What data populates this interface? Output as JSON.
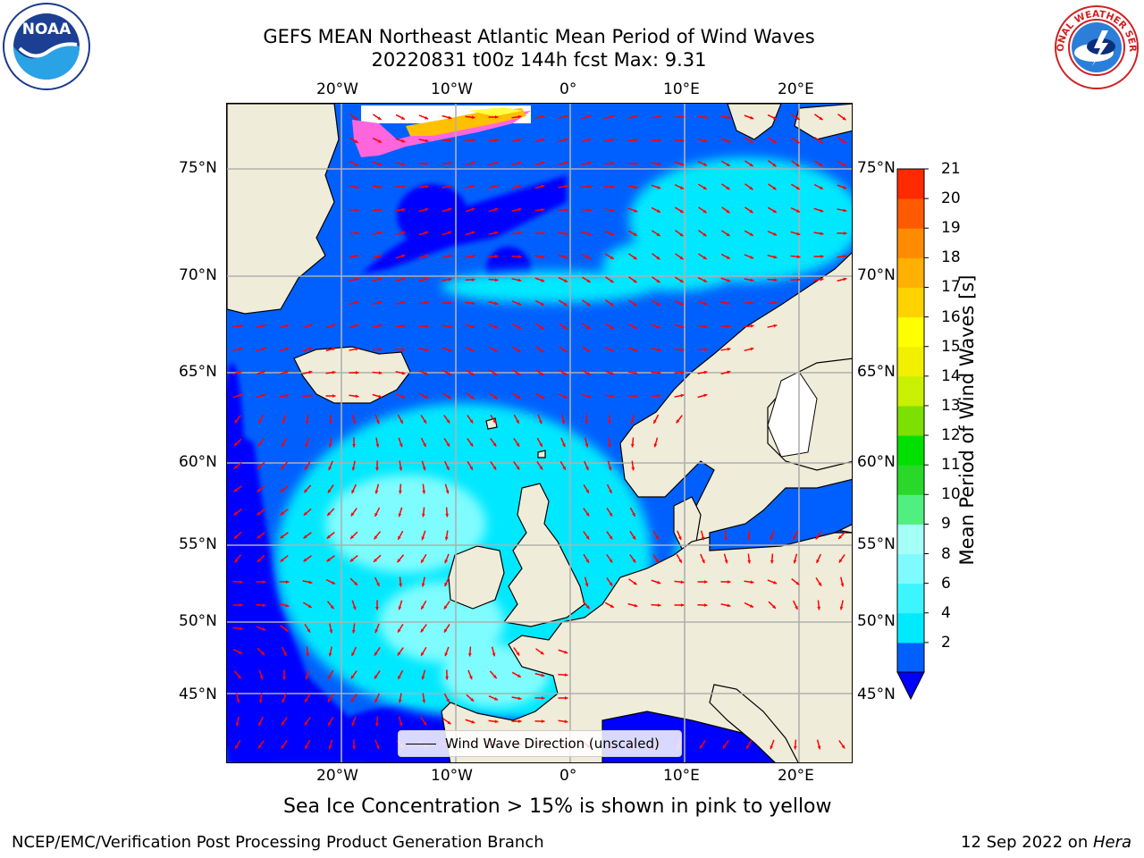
{
  "title_line1": "GEFS MEAN Northeast Atlantic Mean Period of Wind Waves",
  "title_line2": "20220831 t00z 144h fcst   Max: 9.31",
  "top_lon_labels": [
    "20°W",
    "10°W",
    "0°",
    "10°E",
    "20°E"
  ],
  "bottom_lon_labels": [
    "20°W",
    "10°W",
    "0°",
    "10°E",
    "20°E"
  ],
  "left_lat_labels": [
    "75°N",
    "70°N",
    "65°N",
    "60°N",
    "55°N",
    "50°N",
    "45°N"
  ],
  "right_lat_labels": [
    "75°N",
    "70°N",
    "65°N",
    "60°N",
    "55°N",
    "50°N",
    "45°N"
  ],
  "legend_label": "Wind Wave Direction (unscaled)",
  "colorbar": {
    "label": "Mean Period of Wind Waves [s]",
    "ticks": [
      "21",
      "20",
      "19",
      "18",
      "17",
      "16",
      "15",
      "14",
      "13",
      "12",
      "11",
      "10",
      "9",
      "8",
      "6",
      "4",
      "2"
    ],
    "levels": [
      2,
      4,
      6,
      7,
      8,
      9,
      10,
      11,
      12,
      13,
      14,
      15,
      16,
      17,
      18,
      19,
      20,
      21
    ],
    "colors": [
      "#0060ff",
      "#00eaff",
      "#3df5ff",
      "#7ffbff",
      "#a6fff7",
      "#50f080",
      "#2ad82a",
      "#00e000",
      "#7ce000",
      "#c8f000",
      "#f0f000",
      "#ffff00",
      "#ffd200",
      "#ffb000",
      "#ff8c00",
      "#ff5a00",
      "#ff2a00"
    ],
    "under_color": "#0000ff",
    "extend": "min"
  },
  "caption": "Sea Ice Concentration > 15% is shown in pink to yellow",
  "footer_left": "NCEP/EMC/Verification Post Processing Product Generation Branch",
  "footer_right_date": "12 Sep 2022 on ",
  "footer_right_host": "Hera",
  "logos": {
    "noaa_text": "NOAA",
    "nws_text": "NATIONAL WEATHER SERVICE"
  },
  "colors": {
    "land": "#efecd9",
    "arrow": "#ff0000",
    "grid": "#b0b0b0",
    "ocean_low": "#0060ff",
    "ocean_min": "#0000ff",
    "ocean_mid": "#00e8ff",
    "ocean_high": "#7ffcff"
  }
}
